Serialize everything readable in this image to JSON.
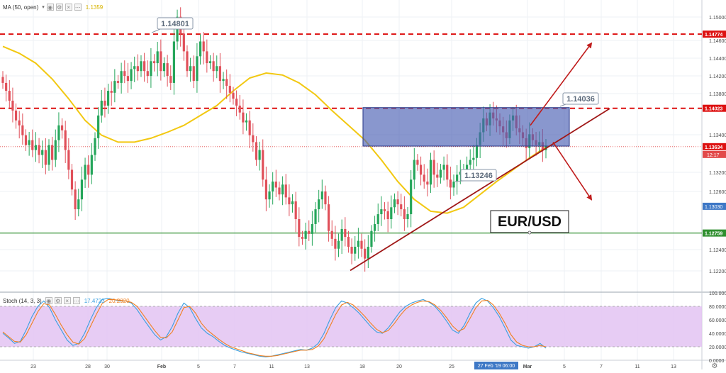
{
  "main_indicator": {
    "label": "MA (50, open)",
    "value": "1.1359",
    "value_color": "#e8c400"
  },
  "stoch_indicator": {
    "label": "Stoch (14, 3, 3)",
    "k_value": "17.4723",
    "d_value": "20.2920",
    "k_color": "#3aa0e0",
    "d_color": "#f08020"
  },
  "watermark": "EUR/USD",
  "time_cursor_label": "27 Feb '19   06:00",
  "countdown": "12:17",
  "chart_data": [
    {
      "type": "candlestick",
      "symbol": "EUR/USD",
      "x_ticks": [
        "23",
        "28",
        "30",
        "Feb",
        "5",
        "7",
        "11",
        "13",
        "18",
        "20",
        "25",
        "Mar",
        "5",
        "7",
        "11",
        "13"
      ],
      "y_ticks": [
        "1.15000",
        "1.14600",
        "1.14400",
        "1.14200",
        "1.13800",
        "1.13400",
        "1.13200",
        "1.12600",
        "1.12400",
        "1.12200"
      ],
      "ylim": [
        1.1216,
        1.1512
      ],
      "ohlc_close_path": [
        1.1428,
        1.142,
        1.141,
        1.14,
        1.139,
        1.1385,
        1.1375,
        1.1365,
        1.137,
        1.136,
        1.1365,
        1.1355,
        1.136,
        1.1345,
        1.1365,
        1.135,
        1.137,
        1.1385,
        1.138,
        1.136,
        1.134,
        1.132,
        1.13,
        1.131,
        1.133,
        1.1345,
        1.1335,
        1.1355,
        1.1372,
        1.1395,
        1.141,
        1.1405,
        1.142,
        1.1418,
        1.143,
        1.1428,
        1.144,
        1.1435,
        1.143,
        1.1442,
        1.1445,
        1.144,
        1.145,
        1.144,
        1.1435,
        1.145,
        1.1448,
        1.146,
        1.144,
        1.1448,
        1.1435,
        1.1428,
        1.147,
        1.1495,
        1.1478,
        1.146,
        1.144,
        1.1445,
        1.143,
        1.1455,
        1.147,
        1.146,
        1.1448,
        1.145,
        1.144,
        1.1445,
        1.143,
        1.1432,
        1.1425,
        1.1418,
        1.1412,
        1.1405,
        1.1398,
        1.1388,
        1.139,
        1.1375,
        1.1368,
        1.135,
        1.136,
        1.133,
        1.131,
        1.1318,
        1.1328,
        1.1322,
        1.1315,
        1.1325,
        1.1312,
        1.1305,
        1.1308,
        1.129,
        1.1272,
        1.127,
        1.1278,
        1.1275,
        1.1285,
        1.13,
        1.131,
        1.1318,
        1.1305,
        1.1278,
        1.127,
        1.126,
        1.1268,
        1.128,
        1.1272,
        1.1262,
        1.1255,
        1.1262,
        1.1268,
        1.126,
        1.125,
        1.1262,
        1.1278,
        1.1285,
        1.1295,
        1.13,
        1.1298,
        1.129,
        1.1302,
        1.131,
        1.1305,
        1.13,
        1.129,
        1.1295,
        1.133,
        1.135,
        1.1345,
        1.1335,
        1.1328,
        1.1325,
        1.135,
        1.1335,
        1.1332,
        1.134,
        1.1345,
        1.133,
        1.1322,
        1.1328,
        1.1335,
        1.1338,
        1.134,
        1.1345,
        1.135,
        1.1352,
        1.1365,
        1.1378,
        1.1392,
        1.1385,
        1.1398,
        1.1392,
        1.139,
        1.1384,
        1.1378,
        1.1372,
        1.139,
        1.1395,
        1.1382,
        1.1378,
        1.1372,
        1.1362,
        1.1376,
        1.137,
        1.1365,
        1.1368,
        1.136,
        1.1364
      ],
      "ma50_path": [
        1.1465,
        1.1458,
        1.1448,
        1.1432,
        1.1412,
        1.139,
        1.1375,
        1.1368,
        1.1368,
        1.1372,
        1.1378,
        1.1385,
        1.1395,
        1.1405,
        1.142,
        1.1433,
        1.1438,
        1.1436,
        1.1428,
        1.1416,
        1.14,
        1.1385,
        1.137,
        1.135,
        1.1328,
        1.131,
        1.1298,
        1.1296,
        1.1302,
        1.1315,
        1.1328,
        1.134,
        1.1352,
        1.1363
      ],
      "horizontal_levels": [
        {
          "value": 1.14774,
          "label": "1.14774",
          "style": "dashed"
        },
        {
          "value": 1.14023,
          "label": "1.14023",
          "style": "dashed"
        },
        {
          "value": 1.13634,
          "label": "1.13634",
          "style": "dotted"
        },
        {
          "value": 1.12759,
          "label": "1.12759",
          "style": "solid"
        }
      ],
      "price_tags": [
        {
          "value": 1.1303,
          "label": "1.13030"
        }
      ],
      "callouts": [
        "1.14801",
        "1.14036",
        "1.13246"
      ],
      "annotations": {
        "box": {
          "top": 1.1403,
          "bottom": 1.1364
        },
        "trendline": [
          1.1238,
          1.1402
        ],
        "arrow_up": [
          1.1385,
          1.1468
        ],
        "arrow_down": [
          1.1368,
          1.131
        ]
      }
    },
    {
      "type": "line",
      "name": "Stoch (14, 3, 3)",
      "y_ticks": [
        "100.0000",
        "80.0000",
        "60.0000",
        "40.0000",
        "20.0000",
        "0.0000"
      ],
      "ylim": [
        0,
        100
      ],
      "band": [
        20,
        80
      ],
      "series": [
        {
          "label": "17.4723",
          "values": [
            40,
            33,
            25,
            28,
            45,
            65,
            80,
            88,
            78,
            60,
            45,
            30,
            22,
            25,
            40,
            60,
            78,
            90,
            92,
            90,
            88,
            88,
            85,
            75,
            62,
            50,
            38,
            30,
            35,
            50,
            70,
            85,
            78,
            62,
            48,
            40,
            35,
            28,
            22,
            18,
            15,
            12,
            10,
            8,
            6,
            5,
            6,
            8,
            10,
            12,
            14,
            16,
            15,
            18,
            25,
            40,
            60,
            78,
            88,
            85,
            78,
            70,
            60,
            50,
            42,
            40,
            48,
            60,
            72,
            80,
            85,
            88,
            90,
            86,
            80,
            70,
            58,
            45,
            40,
            52,
            70,
            85,
            92,
            88,
            78,
            65,
            48,
            30,
            22,
            20,
            18,
            20,
            25,
            18
          ]
        },
        {
          "label": "20.2920",
          "values": [
            42,
            35,
            28,
            27,
            38,
            55,
            72,
            84,
            82,
            68,
            52,
            38,
            27,
            24,
            32,
            50,
            68,
            84,
            90,
            90,
            89,
            88,
            86,
            80,
            68,
            56,
            44,
            34,
            33,
            42,
            60,
            78,
            80,
            70,
            55,
            45,
            38,
            31,
            25,
            20,
            17,
            14,
            11,
            9,
            7,
            6,
            6,
            7,
            9,
            11,
            13,
            15,
            15,
            16,
            21,
            32,
            50,
            68,
            82,
            86,
            82,
            74,
            65,
            55,
            46,
            41,
            44,
            54,
            66,
            76,
            82,
            86,
            88,
            87,
            82,
            74,
            63,
            51,
            43,
            47,
            62,
            78,
            88,
            89,
            82,
            70,
            55,
            38,
            27,
            22,
            20,
            20,
            22,
            20
          ]
        }
      ]
    }
  ]
}
